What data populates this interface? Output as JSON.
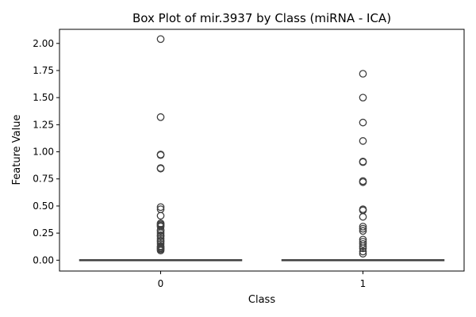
{
  "chart_data": {
    "type": "box",
    "title": "Box Plot of mir.3937 by Class (miRNA - ICA)",
    "xlabel": "Class",
    "ylabel": "Feature Value",
    "categories": [
      "0",
      "1"
    ],
    "ylim": [
      -0.1,
      2.13
    ],
    "yticks": [
      0.0,
      0.25,
      0.5,
      0.75,
      1.0,
      1.25,
      1.5,
      1.75,
      2.0
    ],
    "ytick_labels": [
      "0.00",
      "0.25",
      "0.50",
      "0.75",
      "1.00",
      "1.25",
      "1.50",
      "1.75",
      "2.00"
    ],
    "grid": false,
    "legend": "none",
    "colors": {
      "box_edge": "#3f3f3f",
      "box_fill": "#3f3f3f",
      "axis": "#000000"
    },
    "boxes": [
      {
        "category": "0",
        "min": 0.0,
        "q1": 0.0,
        "median": 0.0,
        "q3": 0.0,
        "max": 0.0,
        "outliers": [
          2.04,
          1.32,
          0.975,
          0.97,
          0.85,
          0.845,
          0.49,
          0.47,
          0.41,
          0.34,
          0.33,
          0.32,
          0.31,
          0.28,
          0.27,
          0.25,
          0.23,
          0.22,
          0.2,
          0.18,
          0.17,
          0.15,
          0.13,
          0.12,
          0.11,
          0.1,
          0.09
        ]
      },
      {
        "category": "1",
        "min": 0.0,
        "q1": 0.0,
        "median": 0.0,
        "q3": 0.0,
        "max": 0.0,
        "outliers": [
          1.72,
          1.5,
          1.27,
          1.1,
          0.91,
          0.905,
          0.73,
          0.72,
          0.47,
          0.46,
          0.4,
          0.31,
          0.29,
          0.27,
          0.19,
          0.17,
          0.15,
          0.13,
          0.11,
          0.08,
          0.06
        ]
      }
    ]
  }
}
